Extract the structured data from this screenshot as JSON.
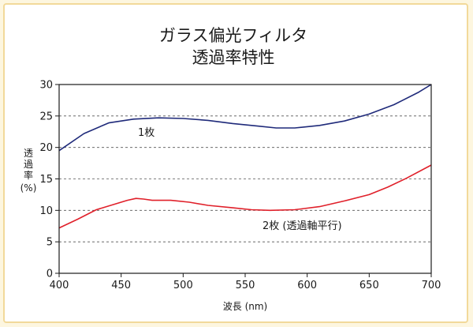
{
  "chart_data": {
    "type": "line",
    "title": "ガラス偏光フィルタ",
    "subtitle": "透過率特性",
    "xlabel": "波長 (nm)",
    "ylabel": "透過率 (%)",
    "xlim": [
      400,
      700
    ],
    "ylim": [
      0,
      30
    ],
    "xticks": [
      400,
      450,
      500,
      550,
      600,
      650,
      700
    ],
    "yticks": [
      0,
      5,
      10,
      15,
      20,
      25,
      30
    ],
    "grid": "horizontal dashed",
    "series": [
      {
        "name": "1枚",
        "color": "#1f2a7a",
        "points": [
          [
            400,
            19.5
          ],
          [
            420,
            22.2
          ],
          [
            440,
            23.9
          ],
          [
            460,
            24.5
          ],
          [
            480,
            24.7
          ],
          [
            500,
            24.6
          ],
          [
            520,
            24.3
          ],
          [
            540,
            23.8
          ],
          [
            560,
            23.4
          ],
          [
            575,
            23.1
          ],
          [
            590,
            23.1
          ],
          [
            610,
            23.5
          ],
          [
            630,
            24.2
          ],
          [
            650,
            25.3
          ],
          [
            670,
            26.8
          ],
          [
            690,
            28.8
          ],
          [
            700,
            30.0
          ]
        ]
      },
      {
        "name": "2枚 (透過軸平行)",
        "color": "#e0202a",
        "points": [
          [
            400,
            7.2
          ],
          [
            415,
            8.6
          ],
          [
            430,
            10.1
          ],
          [
            445,
            11.0
          ],
          [
            455,
            11.6
          ],
          [
            462,
            11.9
          ],
          [
            468,
            11.8
          ],
          [
            475,
            11.6
          ],
          [
            490,
            11.6
          ],
          [
            505,
            11.3
          ],
          [
            520,
            10.8
          ],
          [
            540,
            10.4
          ],
          [
            555,
            10.1
          ],
          [
            570,
            10.0
          ],
          [
            590,
            10.1
          ],
          [
            610,
            10.6
          ],
          [
            630,
            11.5
          ],
          [
            650,
            12.5
          ],
          [
            665,
            13.7
          ],
          [
            680,
            15.1
          ],
          [
            700,
            17.2
          ]
        ]
      }
    ]
  }
}
